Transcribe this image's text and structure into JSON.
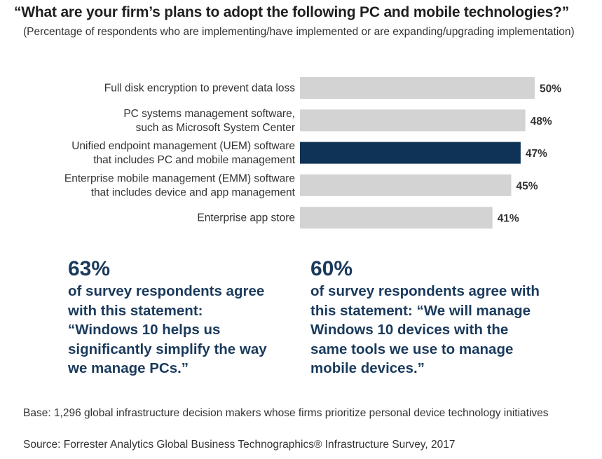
{
  "title": "“What are your firm’s plans to adopt the following PC and mobile technologies?”",
  "subtitle": "(Percentage of respondents who are implementing/have implemented or are expanding/upgrading implementation)",
  "chart_data": {
    "type": "bar",
    "orientation": "horizontal",
    "categories": [
      [
        "Full disk encryption to prevent data loss"
      ],
      [
        "PC systems management software,",
        "such as Microsoft System Center"
      ],
      [
        "Unified endpoint management (UEM) software",
        "that includes PC and mobile management"
      ],
      [
        "Enterprise mobile management (EMM) software",
        "that includes device and app management"
      ],
      [
        "Enterprise app store"
      ]
    ],
    "values": [
      50,
      48,
      47,
      45,
      41
    ],
    "value_labels": [
      "50%",
      "48%",
      "47%",
      "45%",
      "41%"
    ],
    "highlight_index": 2,
    "colors": {
      "bar": "#d3d3d3",
      "highlight": "#0e3356",
      "label": "#333333"
    },
    "xlim": [
      0,
      100
    ],
    "grid": false
  },
  "stats": [
    {
      "percent": "63%",
      "text": "of survey respondents agree\nwith this statement:\n“Windows 10 helps us\nsignificantly simplify the way\nwe manage PCs.”"
    },
    {
      "percent": "60%",
      "text": "of survey respondents agree with\nthis statement: “We will manage\nWindows 10 devices with the\nsame tools we use to manage\nmobile devices.”"
    }
  ],
  "footer": {
    "base": "Base: 1,296 global infrastructure decision makers whose firms prioritize personal device technology initiatives",
    "source": "Source: Forrester Analytics Global Business Technographics® Infrastructure Survey, 2017"
  }
}
